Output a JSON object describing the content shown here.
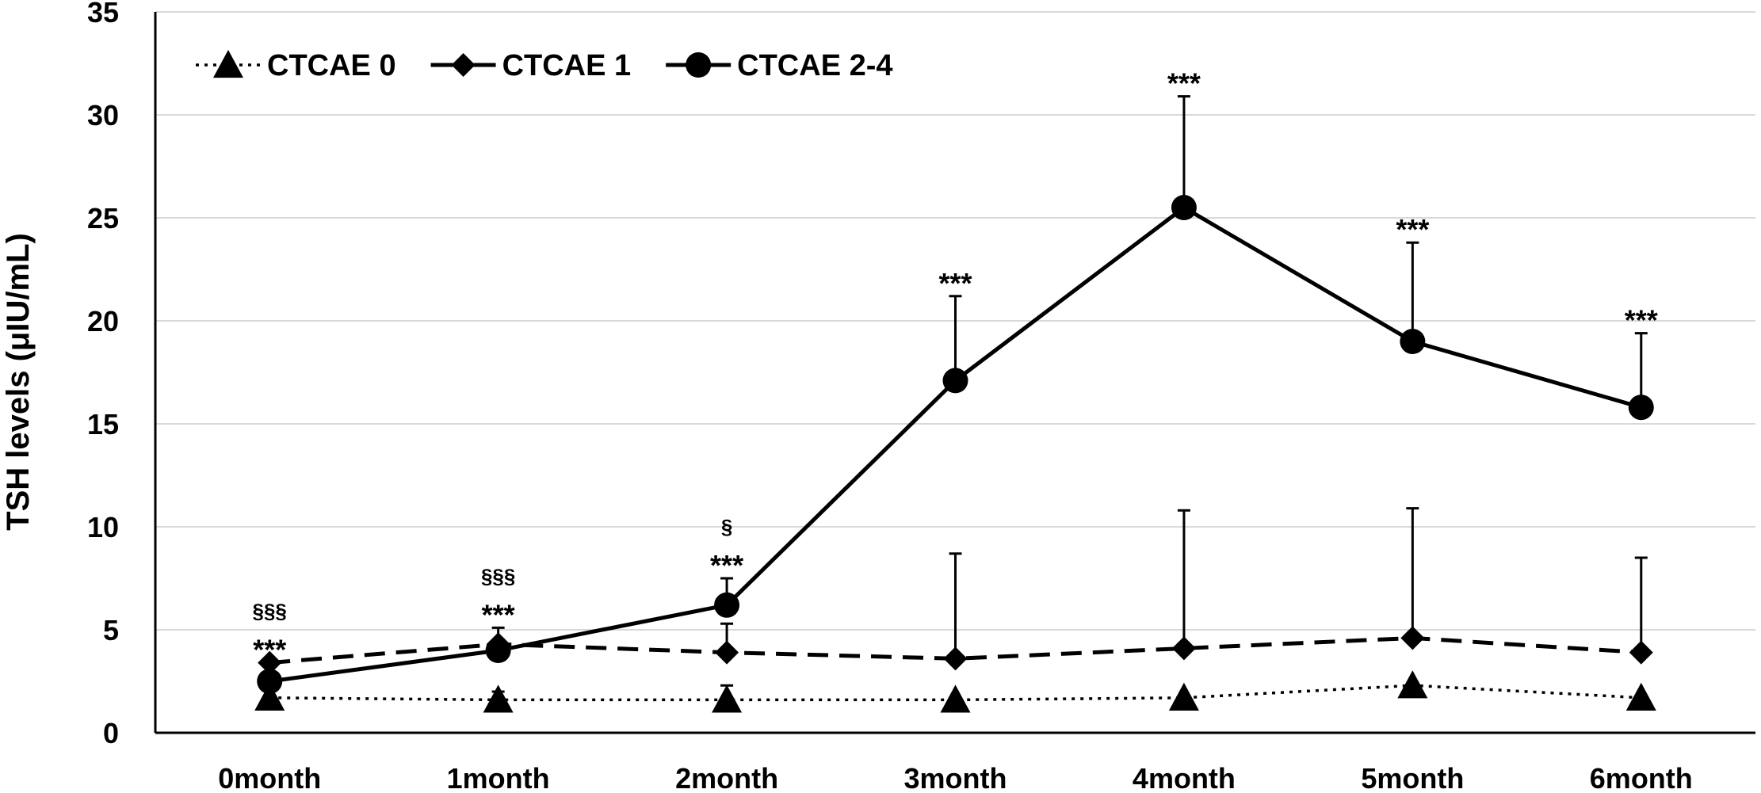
{
  "chart_data": {
    "type": "line",
    "title": "",
    "xlabel": "",
    "ylabel": "TSH levels (μIU/mL)",
    "ylim": [
      0,
      35
    ],
    "yticks": [
      0,
      5,
      10,
      15,
      20,
      25,
      30,
      35
    ],
    "grid": true,
    "legend_position": "top-left",
    "categories": [
      "0month",
      "1month",
      "2month",
      "3month",
      "4month",
      "5month",
      "6month"
    ],
    "series": [
      {
        "name": "CTCAE 0",
        "marker": "triangle",
        "line_style": "dotted",
        "values": [
          1.7,
          1.6,
          1.6,
          1.6,
          1.7,
          2.3,
          1.7
        ],
        "error_upper": [
          null,
          2.0,
          2.3,
          null,
          null,
          null,
          null
        ]
      },
      {
        "name": "CTCAE 1",
        "marker": "diamond",
        "line_style": "dashed",
        "values": [
          3.4,
          4.3,
          3.9,
          3.6,
          4.1,
          4.6,
          3.9
        ],
        "error_upper": [
          null,
          null,
          5.3,
          8.7,
          10.8,
          10.9,
          8.5
        ]
      },
      {
        "name": "CTCAE 2-4",
        "marker": "circle",
        "line_style": "solid",
        "values": [
          2.5,
          4.0,
          6.2,
          17.1,
          25.5,
          19.0,
          15.8
        ],
        "error_upper": [
          null,
          5.1,
          7.5,
          21.2,
          30.9,
          23.8,
          19.4
        ]
      }
    ],
    "annotations": [
      {
        "category": "0month",
        "lines": [
          "§§§",
          "***"
        ]
      },
      {
        "category": "1month",
        "lines": [
          "§§§",
          "***"
        ]
      },
      {
        "category": "2month",
        "lines": [
          "§",
          "***"
        ]
      },
      {
        "category": "3month",
        "lines": [
          "***"
        ]
      },
      {
        "category": "4month",
        "lines": [
          "***"
        ]
      },
      {
        "category": "5month",
        "lines": [
          "***"
        ]
      },
      {
        "category": "6month",
        "lines": [
          "***"
        ]
      }
    ]
  }
}
